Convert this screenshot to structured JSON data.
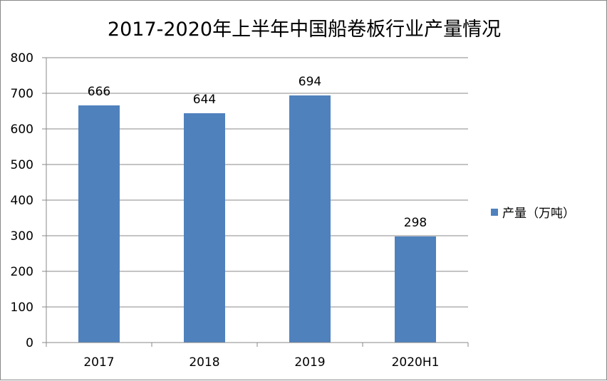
{
  "chart_data": {
    "type": "bar",
    "title": "2017-2020年上半年中国船卷板行业产量情况",
    "categories": [
      "2017",
      "2018",
      "2019",
      "2020H1"
    ],
    "series": [
      {
        "name": "产量（万吨）",
        "values": [
          666,
          644,
          694,
          298
        ],
        "color": "#4F81BD"
      }
    ],
    "xlabel": "",
    "ylabel": "",
    "ylim": [
      0,
      800
    ],
    "yticks": [
      "0",
      "100",
      "200",
      "300",
      "400",
      "500",
      "600",
      "700",
      "800"
    ],
    "grid": true,
    "legend_position": "right",
    "data_labels": true
  }
}
